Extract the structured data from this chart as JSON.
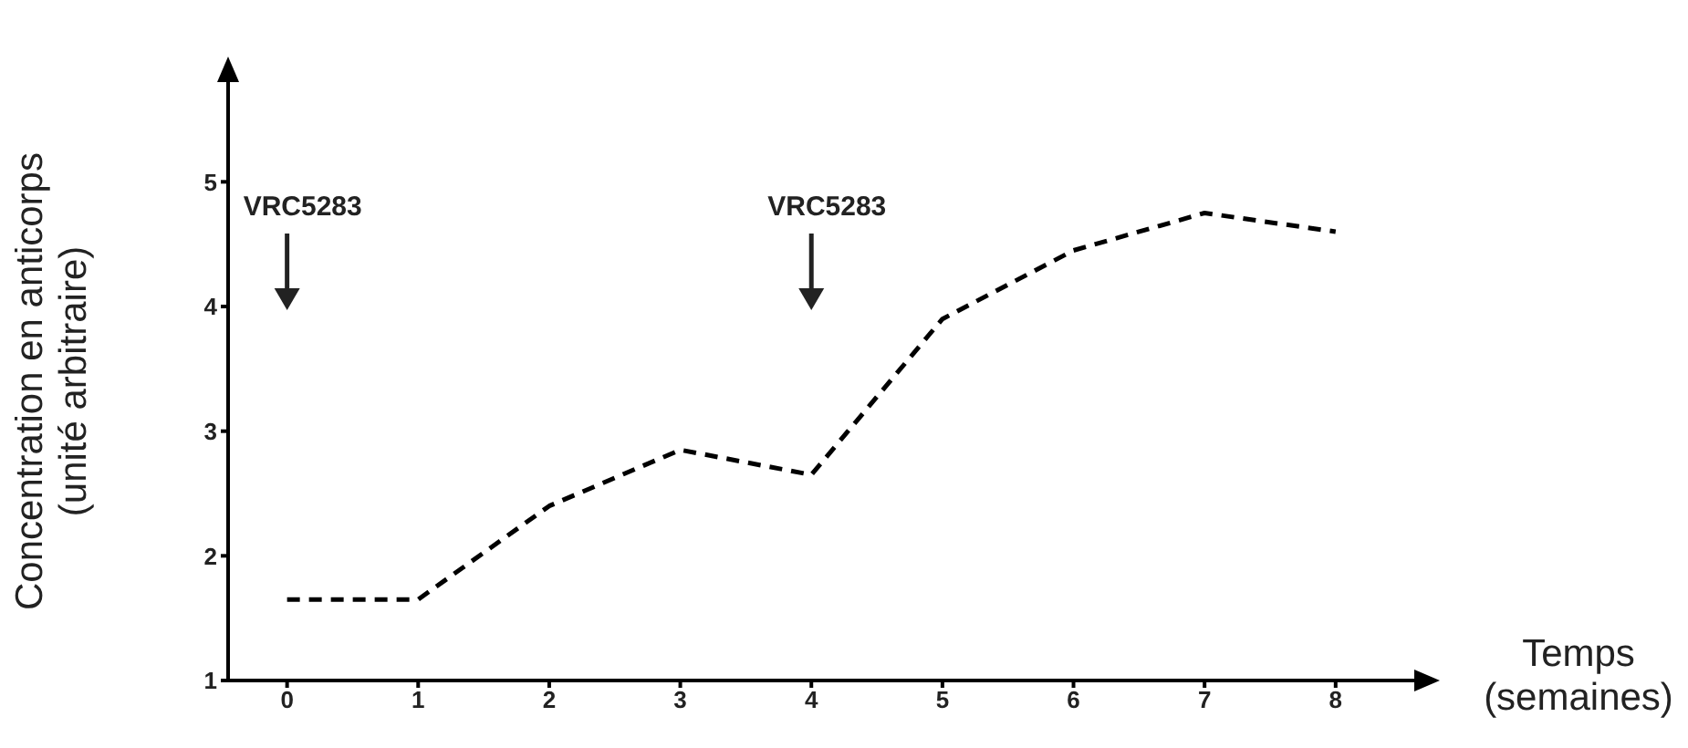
{
  "chart_data": {
    "type": "line",
    "xlabel": "Temps\n(semaines)",
    "ylabel": "Concentration en anticorps\n(unité arbitraire)",
    "x": [
      0,
      1,
      2,
      3,
      4,
      5,
      6,
      7,
      8
    ],
    "series": [
      {
        "color": "#000000",
        "values": [
          1.65,
          1.65,
          2.4,
          2.85,
          2.65,
          3.9,
          4.45,
          4.75,
          4.6
        ]
      }
    ],
    "xlim": [
      -0.45,
      8.6
    ],
    "ylim": [
      1,
      5.8
    ],
    "xticks": [
      0,
      1,
      2,
      3,
      4,
      5,
      6,
      7,
      8
    ],
    "yticks": [
      1,
      2,
      3,
      4,
      5
    ],
    "line_style": "dashed",
    "marker": "none",
    "annotations": [
      {
        "text": "VRC5283",
        "x": 0
      },
      {
        "text": "VRC5283",
        "x": 4
      }
    ]
  }
}
